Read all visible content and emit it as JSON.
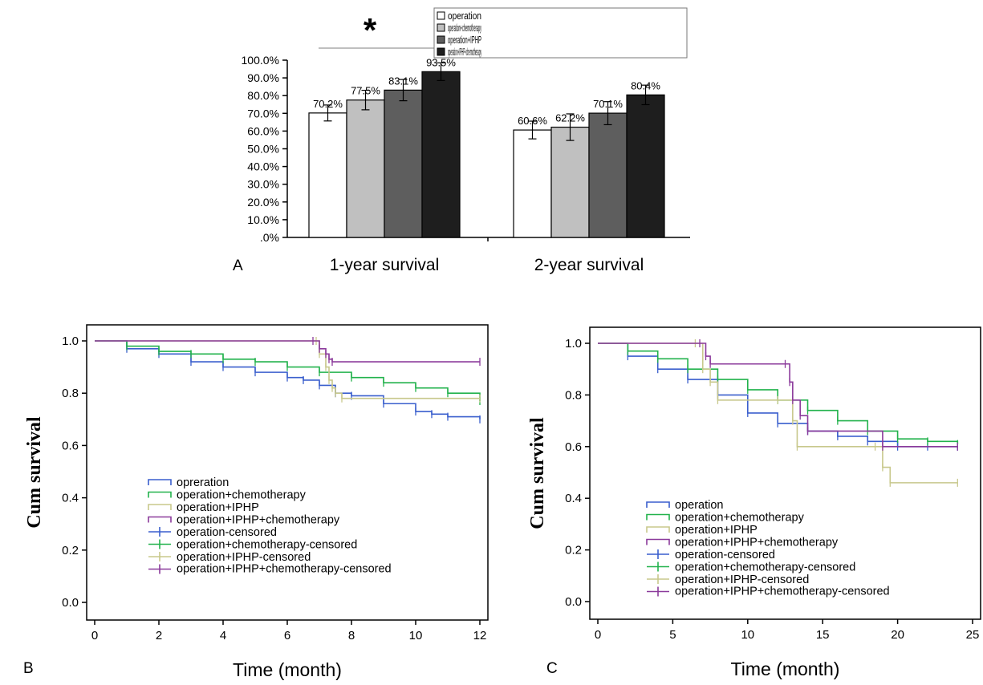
{
  "chart_data": [
    {
      "panel": "A",
      "type": "bar",
      "categories": [
        "1-year survival",
        "2-year survival"
      ],
      "series": [
        {
          "name": "operation",
          "values": [
            70.2,
            60.6
          ],
          "errors": [
            4.5,
            5.0
          ],
          "labels": [
            "70.2%",
            "60.6%"
          ],
          "color": "#ffffff"
        },
        {
          "name": "operation+chemotherapy",
          "values": [
            77.5,
            62.2
          ],
          "errors": [
            5.5,
            7.5
          ],
          "labels": [
            "77.5%",
            "62.2%"
          ],
          "color": "#c0c0c0"
        },
        {
          "name": "operation+IPHP",
          "values": [
            83.1,
            70.1
          ],
          "errors": [
            6.0,
            6.5
          ],
          "labels": [
            "83.1%",
            "70.1%"
          ],
          "color": "#5e5e5e"
        },
        {
          "name": "operation+IPHP+chemotherapy",
          "values": [
            93.5,
            80.4
          ],
          "errors": [
            5.0,
            5.5
          ],
          "labels": [
            "93.5%",
            "80.4%"
          ],
          "color": "#1e1e1e"
        }
      ],
      "ylim": [
        0,
        100
      ],
      "yticks": [
        "100.0%",
        "90.0%",
        "80.0%",
        "70.0%",
        "60.0%",
        "50.0%",
        "40.0%",
        "30.0%",
        "20.0%",
        "10.0%",
        ".0%"
      ],
      "annotation": "*"
    },
    {
      "panel": "B",
      "type": "line",
      "xlabel": "Time (month)",
      "ylabel": "Cum survival",
      "xlim": [
        0,
        12
      ],
      "ylim": [
        0,
        1
      ],
      "xticks": [
        "0",
        "2",
        "4",
        "6",
        "8",
        "10",
        "12"
      ],
      "yticks": [
        "0.0",
        "0.2",
        "0.4",
        "0.6",
        "0.8",
        "1.0"
      ],
      "legend": [
        "opreration",
        "operation+chemotherapy",
        "operation+IPHP",
        "operation+IPHP+chemotherapy",
        "operation-censored",
        "operation+chemotherapy-censored",
        "operation+IPHP-censored",
        "operation+IPHP+chemotherapy-censored"
      ],
      "series": [
        {
          "color": "#3a5fcd",
          "x": [
            0,
            1,
            2,
            3,
            4,
            5,
            6,
            6.5,
            7,
            7.5,
            8,
            9,
            10,
            10.5,
            11,
            12
          ],
          "y": [
            1.0,
            0.97,
            0.95,
            0.92,
            0.9,
            0.88,
            0.86,
            0.85,
            0.83,
            0.8,
            0.79,
            0.76,
            0.73,
            0.72,
            0.71,
            0.7
          ]
        },
        {
          "color": "#22b24c",
          "x": [
            0,
            1,
            2,
            3,
            4,
            5,
            6,
            7,
            8,
            9,
            10,
            11,
            12
          ],
          "y": [
            1.0,
            0.98,
            0.96,
            0.95,
            0.93,
            0.92,
            0.9,
            0.88,
            0.86,
            0.84,
            0.82,
            0.8,
            0.77
          ]
        },
        {
          "color": "#c8c88c",
          "x": [
            0,
            6.9,
            7.0,
            7.2,
            7.3,
            7.4,
            7.5,
            7.7,
            12
          ],
          "y": [
            1.0,
            1.0,
            0.95,
            0.9,
            0.85,
            0.82,
            0.8,
            0.78,
            0.78
          ]
        },
        {
          "color": "#8b3a9b",
          "x": [
            0,
            6.8,
            7.0,
            7.2,
            7.3,
            7.4,
            12
          ],
          "y": [
            1.0,
            1.0,
            0.97,
            0.95,
            0.93,
            0.92,
            0.92
          ]
        }
      ]
    },
    {
      "panel": "C",
      "type": "line",
      "xlabel": "Time (month)",
      "ylabel": "Cum survival",
      "xlim": [
        0,
        25
      ],
      "ylim": [
        0,
        1
      ],
      "xticks": [
        "0",
        "5",
        "10",
        "15",
        "20",
        "25"
      ],
      "yticks": [
        "0.0",
        "0.2",
        "0.4",
        "0.6",
        "0.8",
        "1.0"
      ],
      "legend": [
        "operation",
        "operation+chemotherapy",
        "operation+IPHP",
        "operation+IPHP+chemotherapy",
        "operation-censored",
        "operation+chemotherapy-censored",
        "operation+IPHP-censored",
        "operation+IPHP+chemotherapy-censored"
      ],
      "series": [
        {
          "color": "#3a5fcd",
          "x": [
            0,
            2,
            4,
            6,
            8,
            10,
            12,
            14,
            16,
            18,
            20,
            22,
            24
          ],
          "y": [
            1.0,
            0.95,
            0.9,
            0.86,
            0.8,
            0.73,
            0.69,
            0.66,
            0.64,
            0.62,
            0.6,
            0.6,
            0.6
          ]
        },
        {
          "color": "#22b24c",
          "x": [
            0,
            2,
            4,
            6,
            8,
            10,
            12,
            14,
            16,
            18,
            20,
            22,
            24
          ],
          "y": [
            1.0,
            0.97,
            0.94,
            0.9,
            0.86,
            0.82,
            0.78,
            0.74,
            0.7,
            0.66,
            0.63,
            0.62,
            0.61
          ]
        },
        {
          "color": "#c8c88c",
          "x": [
            0,
            6.5,
            7,
            7.5,
            8,
            12,
            13,
            13.3,
            18.5,
            19,
            19.5,
            24
          ],
          "y": [
            1.0,
            1.0,
            0.9,
            0.85,
            0.78,
            0.78,
            0.7,
            0.6,
            0.6,
            0.52,
            0.46,
            0.46
          ]
        },
        {
          "color": "#8b3a9b",
          "x": [
            0,
            6.8,
            7.2,
            7.5,
            12.5,
            12.8,
            13.0,
            13.5,
            14,
            19,
            24
          ],
          "y": [
            1.0,
            1.0,
            0.95,
            0.92,
            0.92,
            0.85,
            0.78,
            0.72,
            0.66,
            0.6,
            0.6
          ]
        }
      ]
    }
  ],
  "panel_labels": {
    "a": "A",
    "b": "B",
    "c": "C"
  }
}
